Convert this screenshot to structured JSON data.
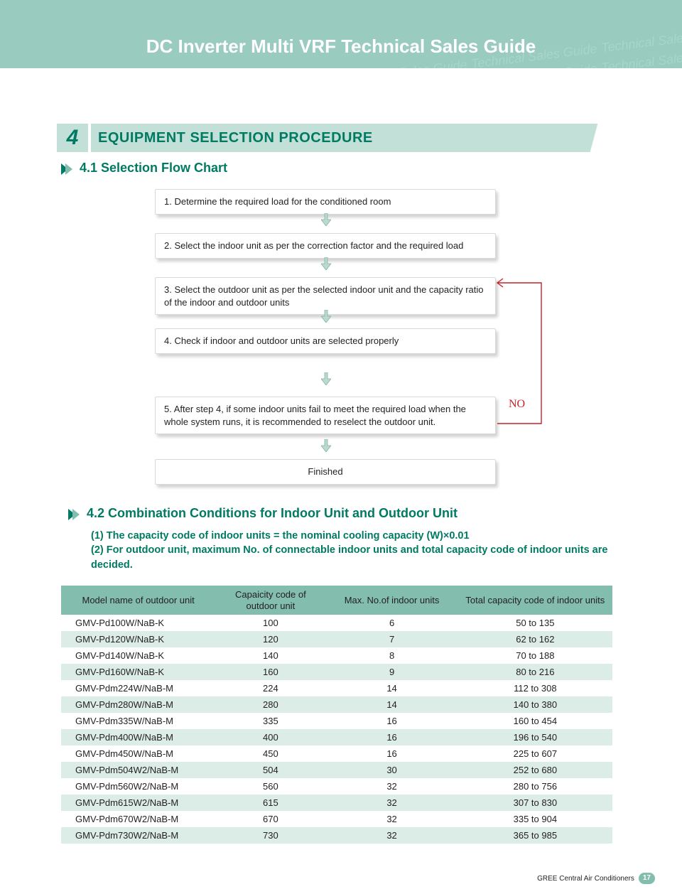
{
  "colors": {
    "header_bg": "#99cbbf",
    "watermark": "#a9d5ca",
    "accent_light": "#c2e0d7",
    "accent_mid": "#82bdae",
    "accent_dark": "#007a63",
    "alt_row": "#dcece6",
    "feedback_line": "#c2242a",
    "arrow_fill": "#bcd9d0"
  },
  "header": {
    "title": "DC Inverter Multi VRF Technical Sales Guide",
    "watermark_phrase": "Technical Sales Guide"
  },
  "section": {
    "number": "4",
    "title": "EQUIPMENT SELECTION PROCEDURE"
  },
  "sub1": {
    "title": "4.1 Selection Flow Chart"
  },
  "flow": {
    "steps": [
      "1. Determine the required load for the conditioned room",
      "2. Select the indoor unit as per the correction factor and the required load",
      "3. Select the outdoor unit as per the selected indoor unit and the capacity ratio of the indoor and outdoor units",
      "4. Check if indoor and outdoor units are selected properly",
      "5. After step 4, if some indoor units fail to meet the required load when the whole system runs, it is recommended to reselect the outdoor unit."
    ],
    "finished": "Finished",
    "no_label": "NO"
  },
  "sub2": {
    "title": "4.2 Combination Conditions for Indoor Unit and Outdoor Unit",
    "line1": "(1) The capacity code of indoor units = the nominal cooling capacity (W)×0.01",
    "line2": "(2) For outdoor unit, maximum No. of connectable indoor units and total capacity code of indoor units are decided."
  },
  "table": {
    "columns": [
      "Model name of outdoor unit",
      "Capaicity code of outdoor unit",
      "Max. No.of indoor units",
      "Total capacity code of indoor units"
    ],
    "rows": [
      [
        "GMV-Pd100W/NaB-K",
        "100",
        "6",
        "50 to 135"
      ],
      [
        "GMV-Pd120W/NaB-K",
        "120",
        "7",
        "62 to 162"
      ],
      [
        "GMV-Pd140W/NaB-K",
        "140",
        "8",
        "70 to 188"
      ],
      [
        "GMV-Pd160W/NaB-K",
        "160",
        "9",
        "80 to 216"
      ],
      [
        "GMV-Pdm224W/NaB-M",
        "224",
        "14",
        "112 to 308"
      ],
      [
        "GMV-Pdm280W/NaB-M",
        "280",
        "14",
        "140 to 380"
      ],
      [
        "GMV-Pdm335W/NaB-M",
        "335",
        "16",
        "160 to 454"
      ],
      [
        "GMV-Pdm400W/NaB-M",
        "400",
        "16",
        "196 to 540"
      ],
      [
        "GMV-Pdm450W/NaB-M",
        "450",
        "16",
        "225 to 607"
      ],
      [
        "GMV-Pdm504W2/NaB-M",
        "504",
        "30",
        "252 to 680"
      ],
      [
        "GMV-Pdm560W2/NaB-M",
        "560",
        "32",
        "280 to 756"
      ],
      [
        "GMV-Pdm615W2/NaB-M",
        "615",
        "32",
        "307 to 830"
      ],
      [
        "GMV-Pdm670W2/NaB-M",
        "670",
        "32",
        "335 to 904"
      ],
      [
        "GMV-Pdm730W2/NaB-M",
        "730",
        "32",
        "365 to 985"
      ]
    ]
  },
  "footer": {
    "brand": "GREE Central Air Conditioners",
    "page": "17"
  }
}
